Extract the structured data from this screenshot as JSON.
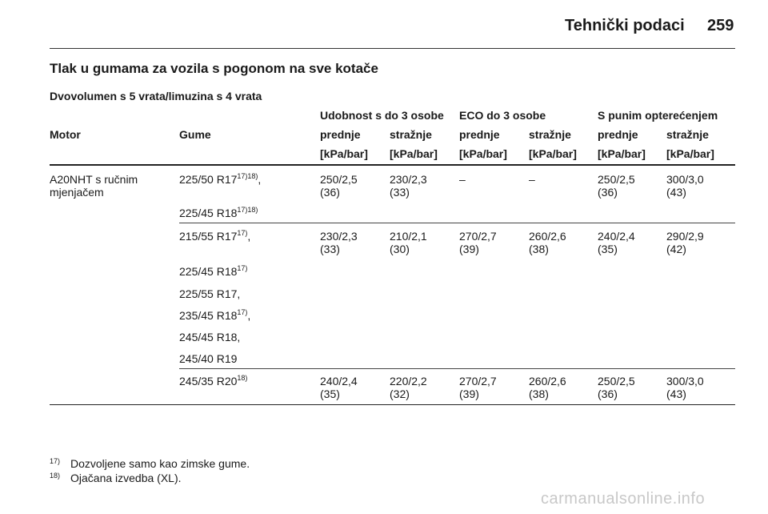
{
  "header": {
    "title": "Tehnički podaci",
    "page_number": "259"
  },
  "section_title": "Tlak u gumama za vozila s pogonom na sve kotače",
  "subtitle": "Dvovolumen s 5 vrata/limuzina s 4 vrata",
  "table": {
    "groups": [
      "Udobnost s do 3 osobe",
      "ECO do 3 osobe",
      "S punim opterećenjem"
    ],
    "col_motor": "Motor",
    "col_tyres": "Gume",
    "front": "prednje",
    "rear": "stražnje",
    "unit": "[kPa/bar]",
    "engine": [
      "A20NHT s ručnim",
      "mjenjačem"
    ],
    "rows": [
      {
        "tyres": [
          {
            "text": "225/50 R17",
            "sup": "17)18)",
            "after": ","
          },
          {
            "text": "225/45 R18",
            "sup": "17)18)",
            "after": ""
          }
        ],
        "values": [
          [
            "250/2,5",
            "(36)"
          ],
          [
            "230/2,3",
            "(33)"
          ],
          [
            "–",
            ""
          ],
          [
            "–",
            ""
          ],
          [
            "250/2,5",
            "(36)"
          ],
          [
            "300/3,0",
            "(43)"
          ]
        ]
      },
      {
        "tyres": [
          {
            "text": "215/55 R17",
            "sup": "17)",
            "after": ","
          },
          {
            "text": "225/45 R18",
            "sup": "17)",
            "after": ""
          },
          {
            "text": "225/55 R17,",
            "sup": "",
            "after": ""
          },
          {
            "text": "235/45 R18",
            "sup": "17)",
            "after": ","
          },
          {
            "text": "245/45 R18,",
            "sup": "",
            "after": ""
          },
          {
            "text": "245/40 R19",
            "sup": "",
            "after": ""
          }
        ],
        "values": [
          [
            "230/2,3",
            "(33)"
          ],
          [
            "210/2,1",
            "(30)"
          ],
          [
            "270/2,7",
            "(39)"
          ],
          [
            "260/2,6",
            "(38)"
          ],
          [
            "240/2,4",
            "(35)"
          ],
          [
            "290/2,9",
            "(42)"
          ]
        ]
      },
      {
        "tyres": [
          {
            "text": "245/35 R20",
            "sup": "18)",
            "after": ""
          }
        ],
        "values": [
          [
            "240/2,4",
            "(35)"
          ],
          [
            "220/2,2",
            "(32)"
          ],
          [
            "270/2,7",
            "(39)"
          ],
          [
            "260/2,6",
            "(38)"
          ],
          [
            "250/2,5",
            "(36)"
          ],
          [
            "300/3,0",
            "(43)"
          ]
        ]
      }
    ]
  },
  "footnotes": [
    {
      "num": "17)",
      "text": "Dozvoljene samo kao zimske gume."
    },
    {
      "num": "18)",
      "text": "Ojačana izvedba (XL)."
    }
  ],
  "watermark": "carmanualsonline.info"
}
